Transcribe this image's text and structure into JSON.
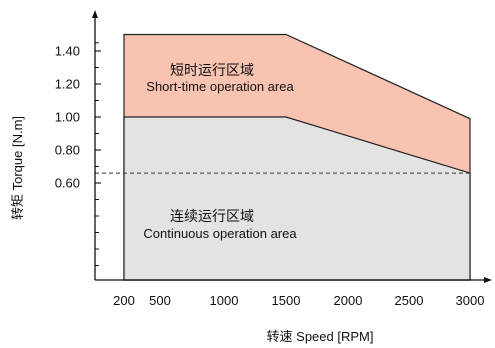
{
  "chart_data": {
    "type": "area",
    "xlabel": "转速 Speed [RPM]",
    "ylabel": "转矩 Torque [N.m]",
    "x_ticks": [
      200,
      500,
      1000,
      1500,
      2000,
      2500,
      3000
    ],
    "y_ticks": [
      "0.60",
      "0.80",
      "1.00",
      "1.20",
      "1.40"
    ],
    "xlim": [
      200,
      3000
    ],
    "ylim": [
      0.06,
      1.5
    ],
    "grid": false,
    "series": [
      {
        "name": "短时运行区域 Short-time operation area",
        "x": [
          200,
          1500,
          3000
        ],
        "y": [
          1.5,
          1.5,
          0.99
        ],
        "color": "#f9c3b2"
      },
      {
        "name": "连续运行区域 Continuous operation area",
        "x": [
          200,
          1500,
          3000
        ],
        "y": [
          1.0,
          1.0,
          0.66
        ],
        "color": "#e3e3e3"
      }
    ],
    "reference_line": {
      "y": 0.66,
      "style": "dashed"
    },
    "annotations": {
      "short_time_cn": "短时运行区域",
      "short_time_en": "Short-time operation area",
      "continuous_cn": "连续运行区域",
      "continuous_en": "Continuous operation area"
    }
  }
}
